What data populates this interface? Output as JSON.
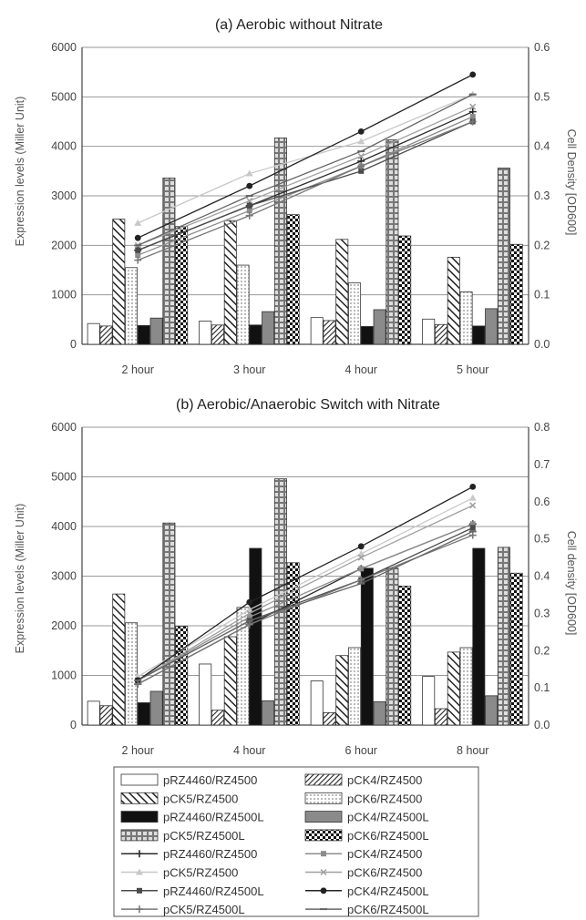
{
  "colors": {
    "line_dark": "#2b2b2b",
    "line_mid": "#555555",
    "line_light": "#b5b5b5",
    "bar_black": "#111111",
    "bar_gray": "#8a8a8a",
    "grid": "#999999"
  },
  "series_styles": [
    {
      "name": "pRZ4460/RZ4500",
      "fill": "white",
      "note": "open bar"
    },
    {
      "name": "pCK4/RZ4500",
      "fill": "diag-dense",
      "note": "dense diagonal hatch"
    },
    {
      "name": "pCK5/RZ4500",
      "fill": "diag-wide",
      "note": "wide diagonal hatch"
    },
    {
      "name": "pCK6/RZ4500",
      "fill": "dots-light",
      "note": "light dotted"
    },
    {
      "name": "pRZ4460/RZ4500L",
      "fill": "solid-black"
    },
    {
      "name": "pCK4/RZ4500L",
      "fill": "solid-gray"
    },
    {
      "name": "pCK5/RZ4500L",
      "fill": "grid-squares"
    },
    {
      "name": "pCK6/RZ4500L",
      "fill": "checker"
    }
  ],
  "line_styles": [
    {
      "name": "pRZ4460/RZ4500",
      "color": "#2b2b2b",
      "marker": "plus"
    },
    {
      "name": "pCK4/RZ4500",
      "color": "#8c8c8c",
      "marker": "square"
    },
    {
      "name": "pCK5/RZ4500",
      "color": "#c8c8c8",
      "marker": "triangle"
    },
    {
      "name": "pCK6/RZ4500",
      "color": "#a0a0a0",
      "marker": "x"
    },
    {
      "name": "pRZ4460/RZ4500L",
      "color": "#4a4a4a",
      "marker": "square"
    },
    {
      "name": "pCK4/RZ4500L",
      "color": "#222222",
      "marker": "circle"
    },
    {
      "name": "pCK5/RZ4500L",
      "color": "#777777",
      "marker": "plus"
    },
    {
      "name": "pCK6/RZ4500L",
      "color": "#666666",
      "marker": "dash"
    }
  ],
  "legend": {
    "bar_entries": [
      "pRZ4460/RZ4500",
      "pCK4/RZ4500",
      "pCK5/RZ4500",
      "pCK6/RZ4500",
      "pRZ4460/RZ4500L",
      "pCK4/RZ4500L",
      "pCK5/RZ4500L",
      "pCK6/RZ4500L"
    ],
    "line_entries": [
      "pRZ4460/RZ4500",
      "pCK4/RZ4500",
      "pCK5/RZ4500",
      "pCK6/RZ4500",
      "pRZ4460/RZ4500L",
      "pCK4/RZ4500L",
      "pCK5/RZ4500L",
      "pCK6/RZ4500L"
    ]
  },
  "chart_data": [
    {
      "type": "bar",
      "title": "(a) Aerobic without Nitrate",
      "ylabel": "Expression levels (Miller Unit)",
      "y2label": "Cell Density [OD600]",
      "categories": [
        "2 hour",
        "3 hour",
        "4 hour",
        "5 hour"
      ],
      "ylim": [
        0,
        6000
      ],
      "yticks": [
        0,
        1000,
        2000,
        3000,
        4000,
        5000,
        6000
      ],
      "y2lim": [
        0,
        0.6
      ],
      "y2ticks": [
        "0.0",
        "0.1",
        "0.2",
        "0.3",
        "0.4",
        "0.5",
        "0.6"
      ],
      "grid": true,
      "series": [
        {
          "name": "pRZ4460/RZ4500",
          "values": [
            420,
            470,
            540,
            510
          ]
        },
        {
          "name": "pCK4/RZ4500",
          "values": [
            370,
            390,
            480,
            400
          ]
        },
        {
          "name": "pCK5/RZ4500",
          "values": [
            2530,
            2500,
            2120,
            1760
          ]
        },
        {
          "name": "pCK6/RZ4500",
          "values": [
            1550,
            1600,
            1240,
            1060
          ]
        },
        {
          "name": "pRZ4460/RZ4500L",
          "values": [
            380,
            390,
            360,
            370
          ]
        },
        {
          "name": "pCK4/RZ4500L",
          "values": [
            530,
            660,
            700,
            720
          ]
        },
        {
          "name": "pCK5/RZ4500L",
          "values": [
            3360,
            4170,
            4130,
            3560
          ]
        },
        {
          "name": "pCK6/RZ4500L",
          "values": [
            2380,
            2620,
            2190,
            2020
          ]
        }
      ],
      "line_series": [
        {
          "name": "pRZ4460/RZ4500",
          "values": [
            0.19,
            0.28,
            0.37,
            0.47
          ]
        },
        {
          "name": "pCK4/RZ4500",
          "values": [
            0.18,
            0.27,
            0.36,
            0.46
          ]
        },
        {
          "name": "pCK5/RZ4500",
          "values": [
            0.245,
            0.345,
            0.41,
            0.505
          ]
        },
        {
          "name": "pCK6/RZ4500",
          "values": [
            0.2,
            0.29,
            0.38,
            0.48
          ]
        },
        {
          "name": "pRZ4460/RZ4500L",
          "values": [
            0.19,
            0.28,
            0.35,
            0.45
          ]
        },
        {
          "name": "pCK4/RZ4500L",
          "values": [
            0.215,
            0.32,
            0.43,
            0.545
          ]
        },
        {
          "name": "pCK5/RZ4500L",
          "values": [
            0.17,
            0.26,
            0.36,
            0.45
          ]
        },
        {
          "name": "pCK6/RZ4500L",
          "values": [
            0.2,
            0.3,
            0.39,
            0.505
          ]
        }
      ]
    },
    {
      "type": "bar",
      "title": "(b) Aerobic/Anaerobic Switch with Nitrate",
      "ylabel": "Expression levels (Miller Unit)",
      "y2label": "Cell density [OD600]",
      "categories": [
        "2 hour",
        "4 hour",
        "6 hour",
        "8 hour"
      ],
      "ylim": [
        0,
        6000
      ],
      "yticks": [
        0,
        1000,
        2000,
        3000,
        4000,
        5000,
        6000
      ],
      "y2lim": [
        0,
        0.8
      ],
      "y2ticks": [
        "0.0",
        "0.1",
        "0.2",
        "0.3",
        "0.4",
        "0.5",
        "0.6",
        "0.7",
        "0.8"
      ],
      "grid": true,
      "series": [
        {
          "name": "pRZ4460/RZ4500",
          "values": [
            480,
            1230,
            890,
            980
          ]
        },
        {
          "name": "pCK4/RZ4500",
          "values": [
            390,
            300,
            250,
            330
          ]
        },
        {
          "name": "pCK5/RZ4500",
          "values": [
            2640,
            1780,
            1400,
            1470
          ]
        },
        {
          "name": "pCK6/RZ4500",
          "values": [
            2060,
            2370,
            1560,
            1560
          ]
        },
        {
          "name": "pRZ4460/RZ4500L",
          "values": [
            450,
            3560,
            3160,
            3560
          ]
        },
        {
          "name": "pCK4/RZ4500L",
          "values": [
            680,
            490,
            470,
            590
          ]
        },
        {
          "name": "pCK5/RZ4500L",
          "values": [
            4070,
            4960,
            3160,
            3580
          ]
        },
        {
          "name": "pCK6/RZ4500L",
          "values": [
            1990,
            3270,
            2800,
            3060
          ]
        }
      ],
      "line_series": [
        {
          "name": "pRZ4460/RZ4500",
          "values": [
            0.11,
            0.27,
            0.42,
            0.54
          ]
        },
        {
          "name": "pCK4/RZ4500",
          "values": [
            0.12,
            0.29,
            0.42,
            0.54
          ]
        },
        {
          "name": "pCK5/RZ4500",
          "values": [
            0.13,
            0.31,
            0.46,
            0.61
          ]
        },
        {
          "name": "pCK6/RZ4500",
          "values": [
            0.12,
            0.3,
            0.45,
            0.59
          ]
        },
        {
          "name": "pRZ4460/RZ4500L",
          "values": [
            0.12,
            0.28,
            0.39,
            0.53
          ]
        },
        {
          "name": "pCK4/RZ4500L",
          "values": [
            0.12,
            0.33,
            0.48,
            0.64
          ]
        },
        {
          "name": "pCK5/RZ4500L",
          "values": [
            0.11,
            0.27,
            0.39,
            0.51
          ]
        },
        {
          "name": "pCK6/RZ4500L",
          "values": [
            0.12,
            0.28,
            0.38,
            0.52
          ]
        }
      ]
    }
  ]
}
